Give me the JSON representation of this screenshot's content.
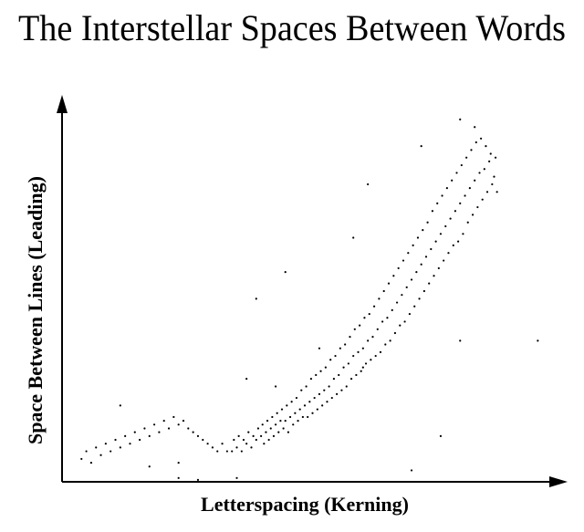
{
  "chart_data": {
    "type": "scatter",
    "title": "The Interstellar Spaces Between Words",
    "x_label": "Letterspacing (Kerning)",
    "y_label": "Space Between Lines (Leading)",
    "color": "#000000",
    "xlim": [
      0,
      100
    ],
    "ylim": [
      0,
      100
    ],
    "x": [
      4,
      5,
      6,
      7,
      8,
      9,
      10,
      11,
      12,
      13,
      14,
      15,
      16,
      17,
      18,
      19,
      20,
      21,
      22,
      23,
      24,
      25,
      26,
      27,
      28,
      29,
      30,
      31,
      32,
      33,
      34,
      12,
      28,
      24,
      36,
      40,
      53,
      38,
      44,
      60,
      62,
      72,
      78,
      82,
      98,
      74,
      82,
      85,
      63,
      46,
      24,
      18,
      35,
      35.4,
      36,
      36.4,
      37,
      37.4,
      38,
      38.4,
      39,
      39.4,
      40,
      40.4,
      41,
      41.3,
      41.6,
      42,
      42.3,
      42.6,
      43,
      43.3,
      43.6,
      44,
      44.3,
      44.6,
      45,
      45.3,
      45.6,
      46,
      46.3,
      46.6,
      47,
      47.3,
      47.6,
      48,
      48.3,
      48.6,
      49,
      49.3,
      49.6,
      50,
      50.3,
      50.6,
      51,
      51.3,
      51.6,
      52,
      52.3,
      52.6,
      53,
      53.3,
      53.6,
      54,
      54.3,
      54.6,
      55,
      55.3,
      55.6,
      56,
      56.3,
      56.6,
      57,
      57.3,
      57.6,
      58,
      58.3,
      58.6,
      59,
      59.3,
      59.6,
      60,
      60.3,
      60.6,
      61,
      61.3,
      61.6,
      62,
      62.3,
      62.6,
      63,
      63.3,
      63.6,
      64,
      64.3,
      64.6,
      65,
      65.3,
      65.6,
      66,
      66.3,
      66.6,
      67,
      67.3,
      67.6,
      68,
      68.3,
      68.6,
      69,
      69.3,
      69.6,
      70,
      70.3,
      70.6,
      71,
      71.3,
      71.6,
      72,
      72.3,
      72.6,
      73,
      73.3,
      73.6,
      74,
      74.3,
      74.6,
      75,
      75.3,
      75.6,
      76,
      76.3,
      76.6,
      77,
      77.3,
      77.6,
      78,
      78.3,
      78.6,
      79,
      79.3,
      79.6,
      80,
      80.3,
      80.6,
      81,
      81.3,
      81.6,
      82,
      82.3,
      82.6,
      83,
      83.3,
      83.6,
      84,
      84.3,
      84.6,
      85,
      85.3,
      85.6,
      86,
      86.3,
      86.6,
      87,
      87.3,
      87.6,
      88,
      88.3,
      88.6,
      89,
      89.3,
      89.6
    ],
    "values": [
      6,
      8,
      5,
      9,
      7,
      10,
      8,
      11,
      9,
      12,
      10,
      13,
      11,
      14,
      12,
      15,
      13,
      16,
      14,
      17,
      15,
      16,
      14,
      13,
      12,
      11,
      10,
      9,
      8,
      10,
      8,
      20,
      0.5,
      1,
      1,
      48,
      35,
      27,
      25,
      64,
      30,
      3,
      12,
      37,
      37,
      88,
      95,
      93,
      78,
      55,
      5,
      4,
      8,
      11,
      9,
      12,
      8,
      11,
      10,
      13,
      9,
      12,
      11,
      14,
      12,
      15,
      10,
      13,
      16,
      11,
      14,
      17,
      12,
      15,
      18,
      13,
      16,
      19,
      14,
      16,
      20,
      13,
      17,
      21,
      15,
      18,
      22,
      16,
      19,
      24,
      17,
      20,
      25,
      17,
      21,
      27,
      18,
      22,
      28,
      19,
      23,
      29,
      20,
      24,
      30,
      21,
      25,
      32,
      22,
      27,
      33,
      23,
      28,
      35,
      24,
      30,
      36,
      25,
      31,
      38,
      27,
      33,
      40,
      28,
      34,
      41,
      29,
      35,
      43,
      31,
      37,
      44,
      32,
      38,
      46,
      33,
      40,
      48,
      34,
      42,
      50,
      36,
      43,
      52,
      37,
      45,
      54,
      39,
      47,
      56,
      41,
      49,
      58,
      42,
      51,
      60,
      44,
      53,
      62,
      46,
      55,
      64,
      48,
      57,
      66,
      50,
      59,
      68,
      52,
      61,
      71,
      54,
      63,
      73,
      56,
      65,
      75,
      58,
      67,
      77,
      60,
      69,
      79,
      62,
      71,
      81,
      63,
      73,
      83,
      65,
      75,
      85,
      68,
      77,
      87,
      70,
      79,
      89,
      72,
      81,
      90,
      74,
      82,
      88,
      76,
      84,
      86,
      78,
      80,
      85,
      76
    ]
  }
}
